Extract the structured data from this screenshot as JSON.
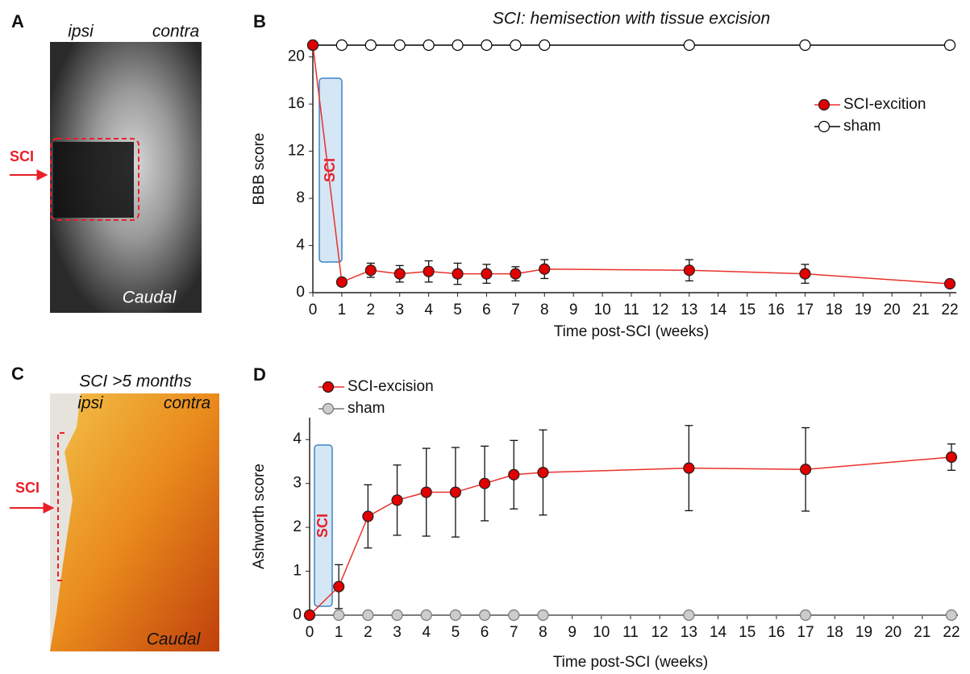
{
  "figure_panels": [
    {
      "letter": "A",
      "ipsi": "ipsi",
      "contra": "contra",
      "injury": "SCI",
      "caudal": "Caudal"
    },
    {
      "letter": "C",
      "title": "SCI >5 months",
      "ipsi": "ipsi",
      "contra": "contra",
      "injury": "SCI",
      "caudal": "Caudal"
    }
  ],
  "chart_data": [
    {
      "type": "line",
      "panel": "B",
      "title": "SCI: hemisection with tissue excision",
      "xlabel": "Time post-SCI (weeks)",
      "ylabel": "BBB score",
      "annotation": "SCI",
      "x": [
        0,
        1,
        2,
        3,
        4,
        5,
        6,
        7,
        8,
        13,
        17,
        22
      ],
      "xlim": [
        0,
        22
      ],
      "xticks": [
        0,
        1,
        2,
        3,
        4,
        5,
        6,
        7,
        8,
        9,
        10,
        11,
        12,
        13,
        14,
        15,
        16,
        17,
        18,
        19,
        20,
        21,
        22
      ],
      "ylim": [
        0,
        21
      ],
      "yticks": [
        0,
        4,
        8,
        12,
        16,
        20
      ],
      "grid": false,
      "legend": "upper right",
      "series": [
        {
          "name": "SCI-excition",
          "color": "#e8312a",
          "marker_fill": "#e00000",
          "values": [
            21,
            0.9,
            1.9,
            1.6,
            1.8,
            1.6,
            1.6,
            1.6,
            2.0,
            1.9,
            1.6,
            0.75
          ],
          "errors": [
            0,
            0.3,
            0.6,
            0.7,
            0.9,
            0.9,
            0.8,
            0.6,
            0.8,
            0.9,
            0.8,
            0.1
          ]
        },
        {
          "name": "sham",
          "color": "#000000",
          "marker_fill": "#ffffff",
          "values": [
            21,
            21,
            21,
            21,
            21,
            21,
            21,
            21,
            21,
            21,
            21,
            21
          ]
        }
      ]
    },
    {
      "type": "line",
      "panel": "D",
      "xlabel": "Time post-SCI (weeks)",
      "ylabel": "Ashworth score",
      "annotation": "SCI",
      "x": [
        0,
        1,
        2,
        3,
        4,
        5,
        6,
        7,
        8,
        13,
        17,
        22
      ],
      "xlim": [
        0,
        22
      ],
      "xticks": [
        0,
        1,
        2,
        3,
        4,
        5,
        6,
        7,
        8,
        9,
        10,
        11,
        12,
        13,
        14,
        15,
        16,
        17,
        18,
        19,
        20,
        21,
        22
      ],
      "ylim": [
        0,
        4.5
      ],
      "yticks": [
        0,
        1,
        2,
        3,
        4
      ],
      "grid": false,
      "legend": "upper left",
      "series": [
        {
          "name": "SCI-excision",
          "color": "#e8312a",
          "marker_fill": "#e00000",
          "values": [
            0,
            0.65,
            2.25,
            2.62,
            2.8,
            2.8,
            3.0,
            3.2,
            3.25,
            3.35,
            3.32,
            3.6
          ],
          "errors": [
            0,
            0.5,
            0.72,
            0.8,
            1.0,
            1.02,
            0.85,
            0.78,
            0.97,
            0.97,
            0.95,
            0.3
          ]
        },
        {
          "name": "sham",
          "color": "#777777",
          "marker_fill": "#cccccc",
          "values": [
            0,
            0,
            0,
            0,
            0,
            0,
            0,
            0,
            0,
            0,
            0,
            0
          ]
        }
      ]
    }
  ]
}
